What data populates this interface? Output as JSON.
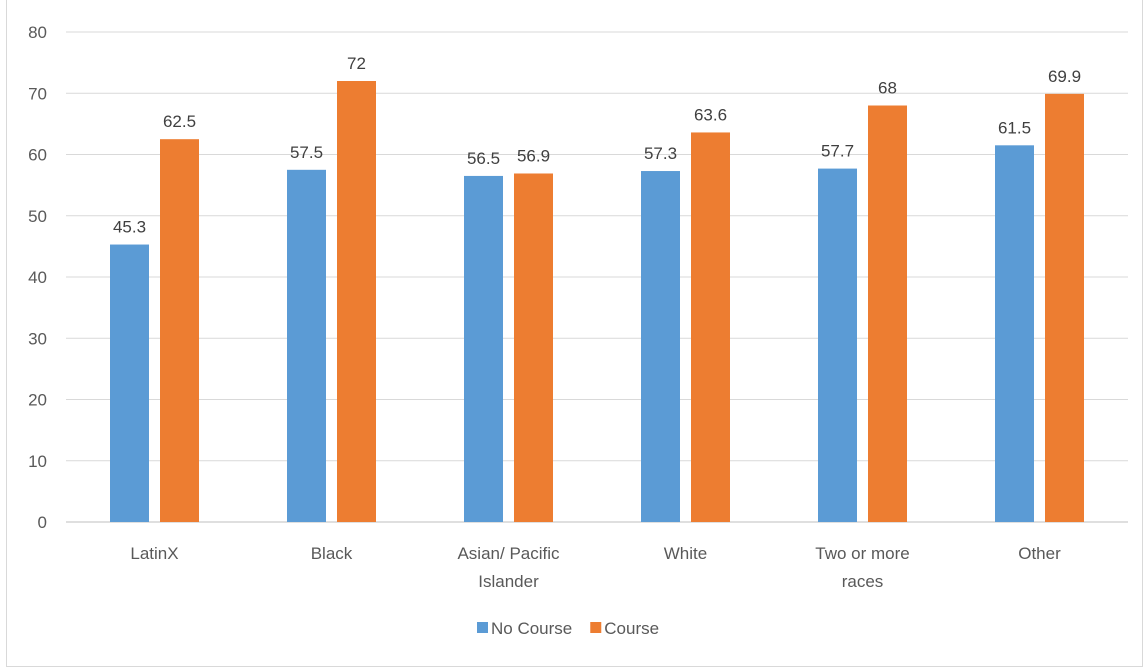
{
  "chart_data": {
    "type": "bar",
    "title": "",
    "xlabel": "",
    "ylabel": "",
    "categories": [
      [
        "LatinX"
      ],
      [
        "Black"
      ],
      [
        "Asian/ Pacific",
        "Islander"
      ],
      [
        "White"
      ],
      [
        "Two or more",
        "races"
      ],
      [
        "Other"
      ]
    ],
    "series": [
      {
        "name": "No Course",
        "color": "#5b9bd5",
        "values": [
          45.3,
          57.5,
          56.5,
          57.3,
          57.7,
          61.5
        ],
        "labels": [
          "45.3",
          "57.5",
          "56.5",
          "57.3",
          "57.7",
          "61.5"
        ]
      },
      {
        "name": "Course",
        "color": "#ed7d31",
        "values": [
          62.5,
          72,
          56.9,
          63.6,
          68,
          69.9
        ],
        "labels": [
          "62.5",
          "72",
          "56.9",
          "63.6",
          "68",
          "69.9"
        ]
      }
    ],
    "ylim": [
      0,
      80
    ],
    "yticks": [
      0,
      10,
      20,
      30,
      40,
      50,
      60,
      70,
      80
    ],
    "grid": true,
    "legend_position": "bottom-center"
  },
  "colors": {
    "grid": "#d9d9d9",
    "axis": "#bfbfbf"
  }
}
